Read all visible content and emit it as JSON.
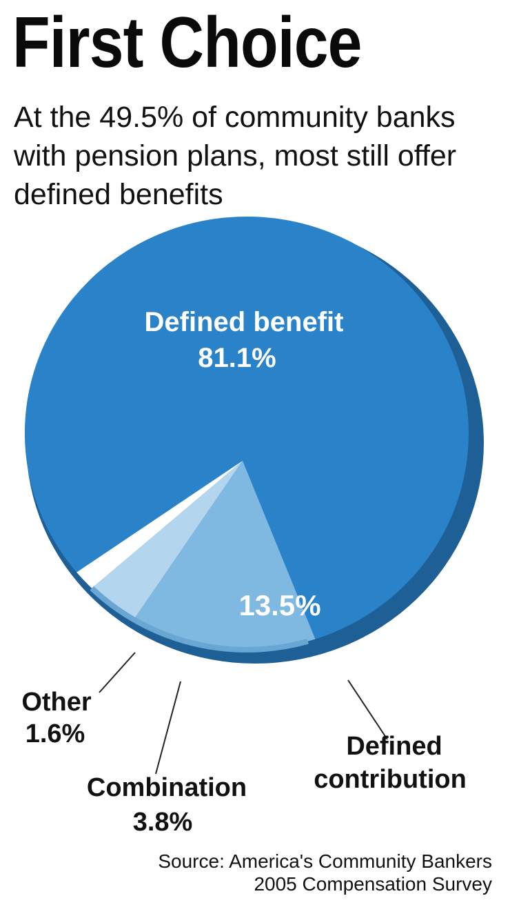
{
  "title": "First Choice",
  "subtitle": "At the 49.5% of community banks with pension plans, most still offer defined benefits",
  "source": {
    "line1": "Source: America's Community Bankers",
    "line2": "2005 Compensation Survey"
  },
  "chart_data": {
    "type": "pie",
    "title": "First Choice",
    "slices": [
      {
        "label": "Defined benefit",
        "value": 81.1,
        "value_label": "81.1%",
        "color": "#2a83c8"
      },
      {
        "label": "Defined contribution",
        "value": 13.5,
        "value_label": "13.5%",
        "color": "#7fb8e0"
      },
      {
        "label": "Combination",
        "value": 3.8,
        "value_label": "3.8%",
        "color": "#b4d5ee"
      },
      {
        "label": "Other",
        "value": 1.6,
        "value_label": "1.6%",
        "color": "#ffffff"
      }
    ],
    "label_lines": {
      "defined_benefit": [
        "Defined benefit",
        "81.1%"
      ],
      "defined_contribution_value": "13.5%",
      "defined_contribution": [
        "Defined",
        "contribution"
      ],
      "combination": [
        "Combination",
        "3.8%"
      ],
      "other": [
        "Other",
        "1.6%"
      ]
    }
  }
}
